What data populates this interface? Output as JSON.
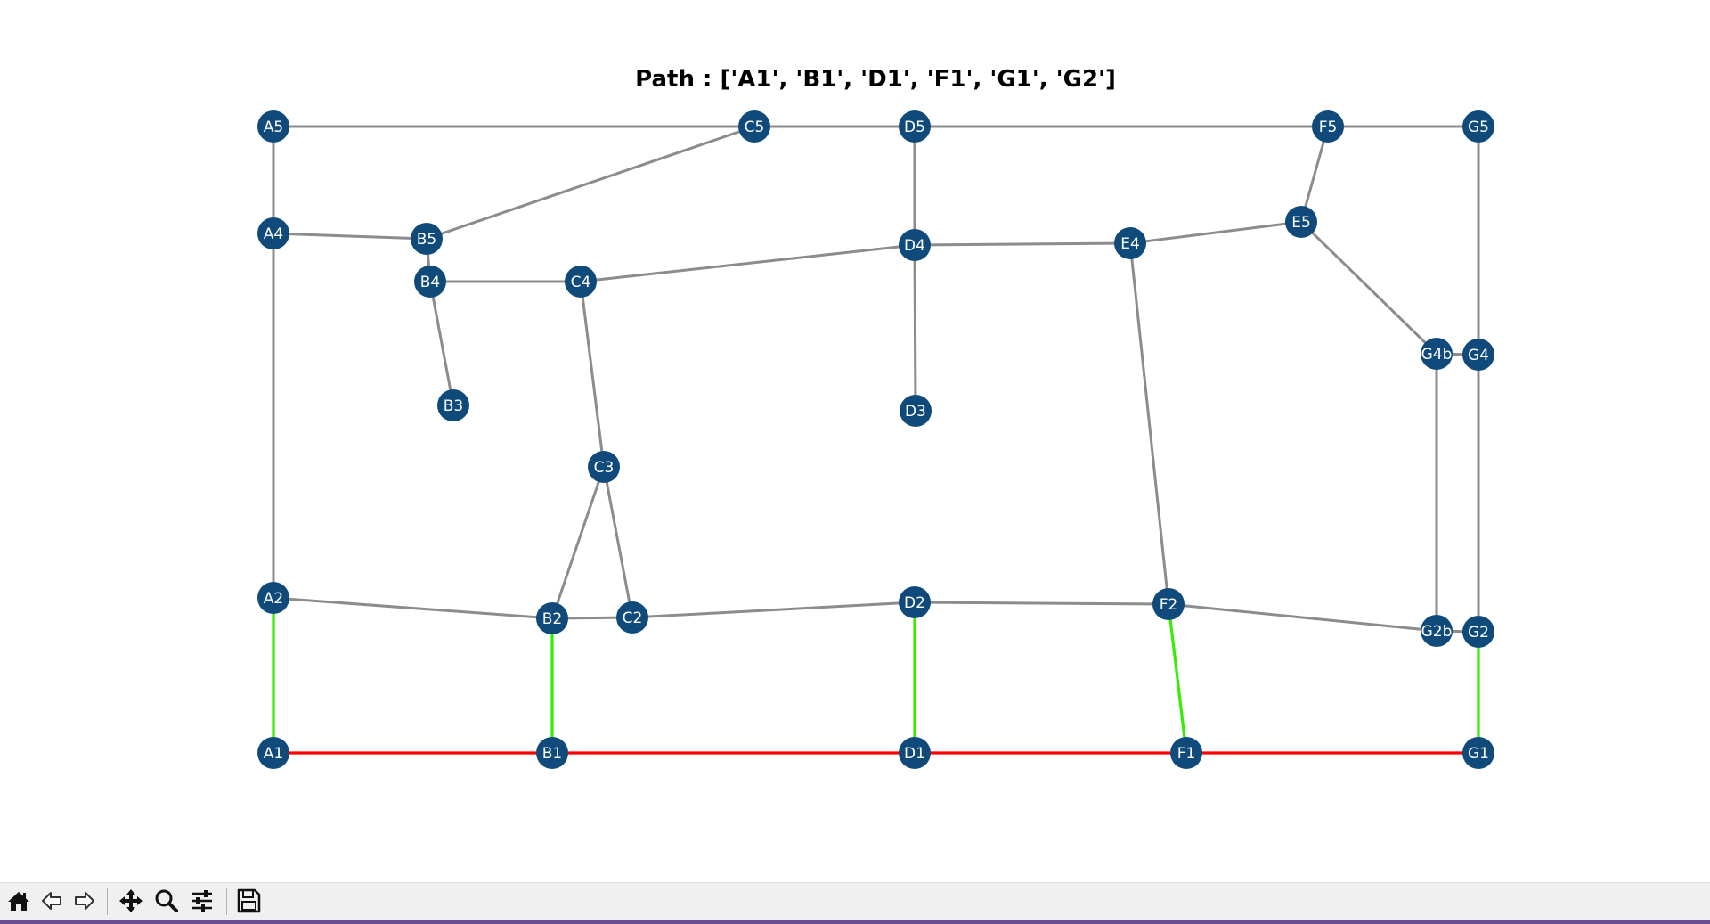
{
  "title": "Path : ['A1', 'B1', 'D1', 'F1', 'G1', 'G2']",
  "colors": {
    "node": "#0f4a7a",
    "node_label": "#ffffff",
    "edge_default": "#8c8c8c",
    "edge_path": "#ff0000",
    "edge_connector": "#33ee00"
  },
  "nodes": [
    "A1",
    "A2",
    "A4",
    "A5",
    "B1",
    "B2",
    "B3",
    "B4",
    "B5",
    "C2",
    "C3",
    "C4",
    "C5",
    "D1",
    "D2",
    "D3",
    "D4",
    "D5",
    "E4",
    "E5",
    "F1",
    "F2",
    "F5",
    "G1",
    "G2",
    "G2b",
    "G4",
    "G4b",
    "G5"
  ],
  "edges": [
    {
      "from": "A5",
      "to": "C5",
      "kind": "default"
    },
    {
      "from": "C5",
      "to": "D5",
      "kind": "default"
    },
    {
      "from": "D5",
      "to": "F5",
      "kind": "default"
    },
    {
      "from": "F5",
      "to": "G5",
      "kind": "default"
    },
    {
      "from": "A5",
      "to": "A4",
      "kind": "default"
    },
    {
      "from": "A4",
      "to": "A2",
      "kind": "default"
    },
    {
      "from": "A4",
      "to": "B5",
      "kind": "default"
    },
    {
      "from": "B5",
      "to": "C5",
      "kind": "default"
    },
    {
      "from": "B5",
      "to": "B4",
      "kind": "default"
    },
    {
      "from": "B4",
      "to": "C4",
      "kind": "default"
    },
    {
      "from": "B4",
      "to": "B3",
      "kind": "default"
    },
    {
      "from": "C4",
      "to": "D4",
      "kind": "default"
    },
    {
      "from": "C4",
      "to": "C3",
      "kind": "default"
    },
    {
      "from": "D5",
      "to": "D4",
      "kind": "default"
    },
    {
      "from": "D4",
      "to": "D3",
      "kind": "default"
    },
    {
      "from": "D4",
      "to": "E4",
      "kind": "default"
    },
    {
      "from": "E4",
      "to": "E5",
      "kind": "default"
    },
    {
      "from": "E5",
      "to": "F5",
      "kind": "default"
    },
    {
      "from": "E5",
      "to": "G4b",
      "kind": "default"
    },
    {
      "from": "E4",
      "to": "F2",
      "kind": "default"
    },
    {
      "from": "G5",
      "to": "G4",
      "kind": "default"
    },
    {
      "from": "G4b",
      "to": "G4",
      "kind": "default"
    },
    {
      "from": "G4b",
      "to": "G2b",
      "kind": "default"
    },
    {
      "from": "G4",
      "to": "G2",
      "kind": "default"
    },
    {
      "from": "C3",
      "to": "B2",
      "kind": "default"
    },
    {
      "from": "C3",
      "to": "C2",
      "kind": "default"
    },
    {
      "from": "A2",
      "to": "B2",
      "kind": "default"
    },
    {
      "from": "B2",
      "to": "C2",
      "kind": "default"
    },
    {
      "from": "C2",
      "to": "D2",
      "kind": "default"
    },
    {
      "from": "D2",
      "to": "F2",
      "kind": "default"
    },
    {
      "from": "F2",
      "to": "G2b",
      "kind": "default"
    },
    {
      "from": "G2b",
      "to": "G2",
      "kind": "default"
    },
    {
      "from": "A2",
      "to": "A1",
      "kind": "connector"
    },
    {
      "from": "B2",
      "to": "B1",
      "kind": "connector"
    },
    {
      "from": "D2",
      "to": "D1",
      "kind": "connector"
    },
    {
      "from": "F2",
      "to": "F1",
      "kind": "connector"
    },
    {
      "from": "G2",
      "to": "G1",
      "kind": "connector"
    },
    {
      "from": "A1",
      "to": "B1",
      "kind": "path"
    },
    {
      "from": "B1",
      "to": "D1",
      "kind": "path"
    },
    {
      "from": "D1",
      "to": "F1",
      "kind": "path"
    },
    {
      "from": "F1",
      "to": "G1",
      "kind": "path"
    }
  ],
  "toolbar": [
    {
      "name": "home-button",
      "icon": "home-icon"
    },
    {
      "name": "back-button",
      "icon": "arrow-left-icon"
    },
    {
      "name": "forward-button",
      "icon": "arrow-right-icon"
    },
    {
      "name": "pan-button",
      "icon": "move-icon"
    },
    {
      "name": "zoom-button",
      "icon": "magnifier-icon"
    },
    {
      "name": "configure-subplots-button",
      "icon": "sliders-icon"
    },
    {
      "name": "save-button",
      "icon": "floppy-disk-icon"
    }
  ]
}
